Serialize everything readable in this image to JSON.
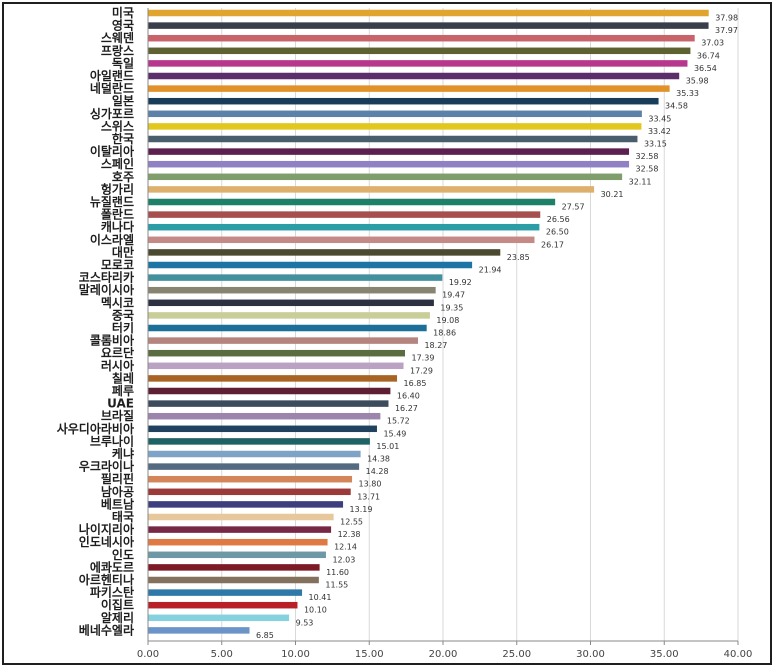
{
  "chart_data": {
    "type": "bar",
    "orientation": "horizontal",
    "title": "",
    "xlabel": "",
    "ylabel": "",
    "xlim": [
      0,
      40
    ],
    "x_ticks": [
      "0.00",
      "5.00",
      "10.00",
      "15.00",
      "20.00",
      "25.00",
      "30.00",
      "35.00",
      "40.00"
    ],
    "grid": "vertical",
    "legend": "none",
    "categories": [
      "미국",
      "영국",
      "스웨덴",
      "프랑스",
      "독일",
      "아일랜드",
      "네덜란드",
      "일본",
      "싱가포르",
      "스위스",
      "한국",
      "이탈리아",
      "스페인",
      "호주",
      "헝가리",
      "뉴질랜드",
      "폴란드",
      "캐나다",
      "이스라엘",
      "대만",
      "모로코",
      "코스타리카",
      "말레이시아",
      "멕시코",
      "중국",
      "터키",
      "콜롬비아",
      "요르단",
      "러시아",
      "칠레",
      "페루",
      "UAE",
      "브라질",
      "사우디아라비아",
      "브루나이",
      "케냐",
      "우크라이나",
      "필리핀",
      "남아공",
      "베트남",
      "태국",
      "나이지리아",
      "인도네시아",
      "인도",
      "에콰도르",
      "아르헨티나",
      "파키스탄",
      "이집트",
      "알제리",
      "베네수엘라"
    ],
    "values": [
      37.98,
      37.97,
      37.03,
      36.74,
      36.54,
      35.98,
      35.33,
      34.58,
      33.45,
      33.42,
      33.15,
      32.58,
      32.58,
      32.11,
      30.21,
      27.57,
      26.56,
      26.5,
      26.17,
      23.85,
      21.94,
      19.92,
      19.47,
      19.35,
      19.08,
      18.86,
      18.27,
      17.39,
      17.29,
      16.85,
      16.4,
      16.27,
      15.72,
      15.49,
      15.01,
      14.38,
      14.28,
      13.8,
      13.71,
      13.19,
      12.55,
      12.38,
      12.14,
      12.03,
      11.6,
      11.55,
      10.41,
      10.1,
      9.53,
      6.85
    ],
    "value_labels": [
      "37.98",
      "37.97",
      "37.03",
      "36.74",
      "36.54",
      "35.98",
      "35.33",
      "34.58",
      "33.45",
      "33.42",
      "33.15",
      "32.58",
      "32.58",
      "32.11",
      "30.21",
      "27.57",
      "26.56",
      "26.50",
      "26.17",
      "23.85",
      "21.94",
      "19.92",
      "19.47",
      "19.35",
      "19.08",
      "18.86",
      "18.27",
      "17.39",
      "17.29",
      "16.85",
      "16.40",
      "16.27",
      "15.72",
      "15.49",
      "15.01",
      "14.38",
      "14.28",
      "13.80",
      "13.71",
      "13.19",
      "12.55",
      "12.38",
      "12.14",
      "12.03",
      "11.60",
      "11.55",
      "10.41",
      "10.10",
      "9.53",
      "6.85"
    ],
    "colors": [
      "#E1A42C",
      "#3A3D4A",
      "#C8636B",
      "#5E6233",
      "#B6378C",
      "#5B2E6B",
      "#E1922A",
      "#173D5A",
      "#5C82A9",
      "#E2C81E",
      "#495E6D",
      "#5D1E50",
      "#9080C4",
      "#7F9E6C",
      "#DDB06D",
      "#1E8068",
      "#A64F4F",
      "#2A9DA6",
      "#C58A86",
      "#4B4A31",
      "#1F74A6",
      "#43909E",
      "#878571",
      "#2D3242",
      "#C9CE98",
      "#1B6F98",
      "#B5847E",
      "#596D41",
      "#BAA2C2",
      "#A76422",
      "#5E1F34",
      "#3C4C5D",
      "#9C85AC",
      "#21425E",
      "#1F6265",
      "#7FA3C7",
      "#536A80",
      "#D4865A",
      "#9C3A3A",
      "#3C3E7E",
      "#E7C79C",
      "#762845",
      "#E07A45",
      "#6F98A6",
      "#7D1A26",
      "#83715E",
      "#2F79A9",
      "#B81F26",
      "#86D1E0",
      "#6C94C8"
    ]
  }
}
